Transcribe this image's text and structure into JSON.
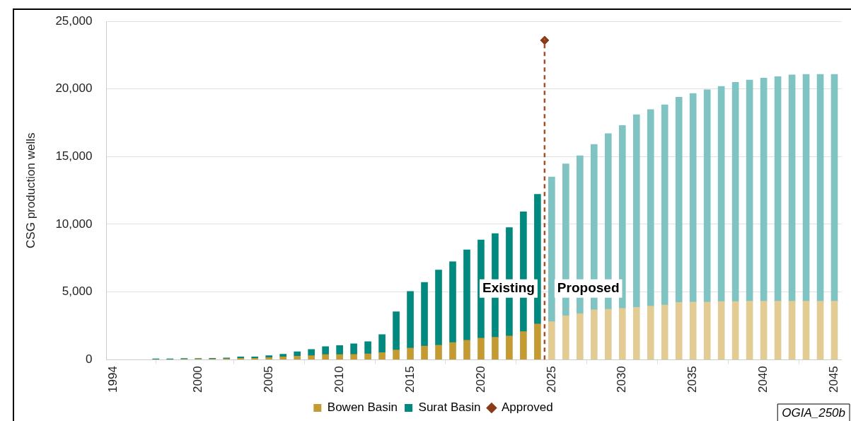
{
  "chart_data": {
    "type": "bar",
    "stacked": true,
    "ylabel": "CSG production wells",
    "x": [
      1997,
      1998,
      1999,
      2000,
      2001,
      2002,
      2003,
      2004,
      2005,
      2006,
      2007,
      2008,
      2009,
      2010,
      2011,
      2012,
      2013,
      2014,
      2015,
      2016,
      2017,
      2018,
      2019,
      2020,
      2021,
      2022,
      2023,
      2024,
      2025,
      2026,
      2027,
      2028,
      2029,
      2030,
      2031,
      2032,
      2033,
      2034,
      2035,
      2036,
      2037,
      2038,
      2039,
      2040,
      2041,
      2042,
      2043,
      2044,
      2045
    ],
    "series": [
      {
        "name": "Bowen Basin",
        "color": "#c49a32",
        "colors": [
          "#c49a32",
          "#c49a32",
          "#c49a32",
          "#c49a32",
          "#c49a32",
          "#c49a32",
          "#c49a32",
          "#c49a32",
          "#c49a32",
          "#c49a32",
          "#c49a32",
          "#c49a32",
          "#c49a32",
          "#c49a32",
          "#c49a32",
          "#c49a32",
          "#c49a32",
          "#c49a32",
          "#c49a32",
          "#c49a32",
          "#c49a32",
          "#c49a32",
          "#c49a32",
          "#c49a32",
          "#c49a32",
          "#c49a32",
          "#c49a32",
          "#c49a32",
          "#e2cc94",
          "#e2cc94",
          "#e2cc94",
          "#e2cc94",
          "#e2cc94",
          "#e2cc94",
          "#e2cc94",
          "#e2cc94",
          "#e2cc94",
          "#e2cc94",
          "#e2cc94",
          "#e2cc94",
          "#e2cc94",
          "#e2cc94",
          "#e2cc94",
          "#e2cc94",
          "#e2cc94",
          "#e2cc94",
          "#e2cc94",
          "#e2cc94",
          "#e2cc94"
        ],
        "values": [
          0,
          0,
          30,
          40,
          40,
          60,
          100,
          100,
          150,
          200,
          250,
          290,
          370,
          370,
          390,
          420,
          520,
          710,
          850,
          1000,
          1070,
          1260,
          1430,
          1590,
          1650,
          1740,
          2070,
          2630,
          2800,
          3230,
          3390,
          3680,
          3720,
          3790,
          3860,
          3950,
          4030,
          4230,
          4260,
          4260,
          4290,
          4290,
          4320,
          4320,
          4320,
          4320,
          4320,
          4320,
          4320
        ]
      },
      {
        "name": "Surat Basin",
        "color": "#00897f",
        "colors": [
          "#00897f",
          "#00897f",
          "#00897f",
          "#00897f",
          "#00897f",
          "#00897f",
          "#00897f",
          "#00897f",
          "#00897f",
          "#00897f",
          "#00897f",
          "#00897f",
          "#00897f",
          "#00897f",
          "#00897f",
          "#00897f",
          "#00897f",
          "#00897f",
          "#00897f",
          "#00897f",
          "#00897f",
          "#00897f",
          "#00897f",
          "#00897f",
          "#00897f",
          "#00897f",
          "#00897f",
          "#00897f",
          "#7fc4c2",
          "#7fc4c2",
          "#7fc4c2",
          "#7fc4c2",
          "#7fc4c2",
          "#7fc4c2",
          "#7fc4c2",
          "#7fc4c2",
          "#7fc4c2",
          "#7fc4c2",
          "#7fc4c2",
          "#7fc4c2",
          "#7fc4c2",
          "#7fc4c2",
          "#7fc4c2",
          "#7fc4c2",
          "#7fc4c2",
          "#7fc4c2",
          "#7fc4c2",
          "#7fc4c2",
          "#7fc4c2"
        ],
        "values": [
          60,
          60,
          50,
          50,
          60,
          60,
          100,
          100,
          140,
          200,
          330,
          460,
          590,
          670,
          780,
          910,
          1330,
          2820,
          4190,
          4700,
          5550,
          5980,
          6680,
          7260,
          7670,
          8020,
          8850,
          9590,
          10700,
          11240,
          11680,
          12220,
          12980,
          13510,
          14240,
          14530,
          14800,
          15170,
          15410,
          15680,
          15900,
          16210,
          16350,
          16490,
          16600,
          16730,
          16760,
          16770,
          16770
        ]
      },
      {
        "name": "Approved",
        "type": "scatter",
        "marker": "diamond",
        "color": "#8b3a1a",
        "x": [
          2024.5
        ],
        "values": [
          23600
        ]
      }
    ],
    "ref_lines": [
      {
        "axis": "x",
        "value": 2024.5,
        "color": "#a0522d",
        "line_style": "dashed"
      }
    ],
    "xlim": [
      1993.5,
      2045.5
    ],
    "xticks": [
      1994,
      2000,
      2005,
      2010,
      2015,
      2020,
      2025,
      2030,
      2035,
      2040,
      2045
    ],
    "ylim": [
      0,
      25000
    ],
    "yticks": [
      {
        "value": 0,
        "label": "0"
      },
      {
        "value": 5000,
        "label": "5,000"
      },
      {
        "value": 10000,
        "label": "10,000"
      },
      {
        "value": 15000,
        "label": "15,000"
      },
      {
        "value": 20000,
        "label": "20,000"
      },
      {
        "value": 25000,
        "label": "25,000"
      }
    ],
    "grid": "y",
    "legend": "bottom",
    "annotations": [
      "Existing",
      "Proposed",
      "OGIA_250b"
    ]
  }
}
